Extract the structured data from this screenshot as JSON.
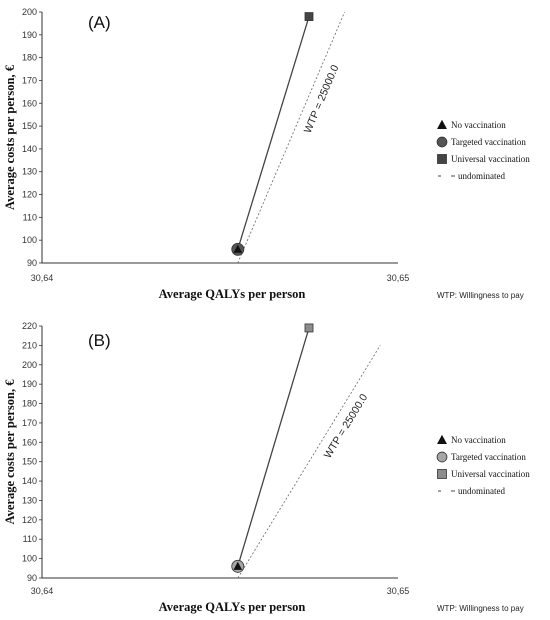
{
  "chart_data": [
    {
      "type": "line",
      "panel_label": "(A)",
      "xlabel": "Average QALYs per person",
      "ylabel": "Average costs per person, €",
      "xlim": [
        30.64,
        30.65
      ],
      "ylim": [
        90,
        200
      ],
      "x_ticks": [
        "30,64",
        "30,65"
      ],
      "y_ticks": [
        90,
        100,
        110,
        120,
        130,
        140,
        150,
        160,
        170,
        180,
        190,
        200
      ],
      "points": [
        {
          "name": "No vaccination",
          "marker": "triangle",
          "color": "#111111",
          "x": 30.6455,
          "y": 96
        },
        {
          "name": "Targeted vaccination",
          "marker": "circle",
          "color": "#555555",
          "x": 30.6455,
          "y": 96
        },
        {
          "name": "Universal vaccination",
          "marker": "square",
          "color": "#444444",
          "x": 30.6475,
          "y": 198
        }
      ],
      "frontier_color": "#444444",
      "wtp_line": {
        "label": "WTP = 25000.0",
        "from": [
          30.6455,
          90
        ],
        "to": [
          30.6485,
          200
        ]
      },
      "legend": [
        "No vaccination",
        "Targeted vaccination",
        "Universal vaccination",
        "undominated"
      ],
      "legend_position": "right",
      "note": "WTP: Willingness to pay"
    },
    {
      "type": "line",
      "panel_label": "(B)",
      "xlabel": "Average QALYs per person",
      "ylabel": "Average costs per person, €",
      "xlim": [
        30.64,
        30.65
      ],
      "ylim": [
        90,
        220
      ],
      "x_ticks": [
        "30,64",
        "30,65"
      ],
      "y_ticks": [
        90,
        100,
        110,
        120,
        130,
        140,
        150,
        160,
        170,
        180,
        190,
        200,
        210,
        220
      ],
      "points": [
        {
          "name": "No vaccination",
          "marker": "triangle",
          "color": "#111111",
          "x": 30.6455,
          "y": 96
        },
        {
          "name": "Targeted vaccination",
          "marker": "circle",
          "color": "#a6a6a6",
          "x": 30.6455,
          "y": 96
        },
        {
          "name": "Universal vaccination",
          "marker": "square",
          "color": "#8c8c8c",
          "x": 30.6475,
          "y": 219
        }
      ],
      "frontier_color": "#444444",
      "wtp_line": {
        "label": "WTP = 25000.0",
        "from": [
          30.6455,
          90
        ],
        "to": [
          30.6495,
          210
        ]
      },
      "legend": [
        "No vaccination",
        "Targeted vaccination",
        "Universal vaccination",
        "undominated"
      ],
      "legend_position": "right",
      "note": "WTP: Willingness to pay"
    }
  ]
}
